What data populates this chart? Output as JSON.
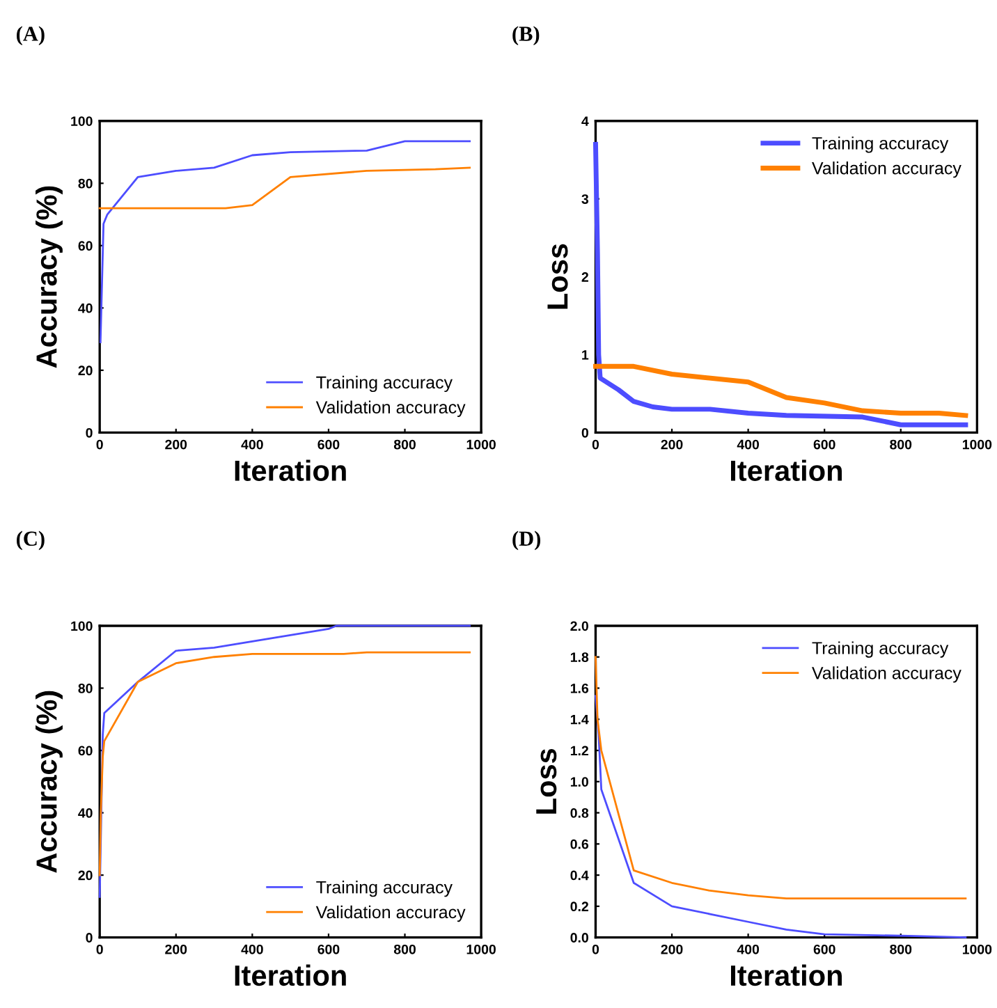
{
  "chart_data": [
    {
      "type": "line",
      "title": "(A)",
      "xlabel": "Iteration",
      "ylabel": "Accuracy (%)",
      "xlim": [
        0,
        1000
      ],
      "xticks": [
        0,
        200,
        400,
        600,
        800,
        1000
      ],
      "ylim": [
        0,
        100
      ],
      "yticks": [
        0,
        20,
        40,
        60,
        80,
        100
      ],
      "grid": false,
      "legend": "bottom right",
      "line_style": "solid",
      "series": [
        {
          "name": "Training accuracy",
          "color": "#4d4dff",
          "x": [
            2,
            10,
            20,
            100,
            200,
            300,
            400,
            500,
            700,
            800,
            970
          ],
          "values": [
            29,
            67,
            70,
            82,
            84,
            85,
            89,
            90,
            90.5,
            93.5,
            93.5
          ]
        },
        {
          "name": "Validation accuracy",
          "color": "#ff8000",
          "x": [
            0,
            330,
            400,
            500,
            700,
            880,
            970
          ],
          "values": [
            72,
            72,
            73,
            82,
            84,
            84.5,
            85
          ]
        }
      ]
    },
    {
      "type": "line",
      "title": "(B)",
      "xlabel": "Iteration",
      "ylabel": "Loss",
      "xlim": [
        0,
        1000
      ],
      "xticks": [
        0,
        200,
        400,
        600,
        800,
        1000
      ],
      "ylim": [
        0,
        4
      ],
      "yticks": [
        0,
        1,
        2,
        3,
        4
      ],
      "grid": false,
      "legend": "top right",
      "line_style": "solid",
      "series": [
        {
          "name": "Training accuracy",
          "color": "#4d4dff",
          "x": [
            0,
            5,
            8,
            12,
            60,
            100,
            150,
            200,
            300,
            400,
            500,
            700,
            800,
            970
          ],
          "values": [
            3.7,
            2.3,
            1.0,
            0.7,
            0.55,
            0.4,
            0.33,
            0.3,
            0.3,
            0.25,
            0.22,
            0.2,
            0.1,
            0.1
          ]
        },
        {
          "name": "Validation accuracy",
          "color": "#ff8000",
          "x": [
            0,
            100,
            200,
            400,
            500,
            600,
            700,
            800,
            900,
            970
          ],
          "values": [
            0.85,
            0.85,
            0.75,
            0.65,
            0.45,
            0.38,
            0.28,
            0.25,
            0.25,
            0.22
          ]
        }
      ]
    },
    {
      "type": "line",
      "title": "(C)",
      "xlabel": "Iteration",
      "ylabel": "Accuracy (%)",
      "xlim": [
        0,
        1000
      ],
      "xticks": [
        0,
        200,
        400,
        600,
        800,
        1000
      ],
      "ylim": [
        0,
        100
      ],
      "yticks": [
        0,
        20,
        40,
        60,
        80,
        100
      ],
      "grid": false,
      "legend": "bottom right",
      "line_style": "solid",
      "series": [
        {
          "name": "Training accuracy",
          "color": "#4d4dff",
          "x": [
            0,
            8,
            12,
            100,
            200,
            300,
            450,
            600,
            620,
            970
          ],
          "values": [
            13,
            65,
            72,
            82,
            92,
            93,
            96,
            99,
            100,
            100
          ]
        },
        {
          "name": "Validation accuracy",
          "color": "#ff8000",
          "x": [
            0,
            3,
            8,
            12,
            100,
            200,
            300,
            400,
            640,
            700,
            970
          ],
          "values": [
            20,
            40,
            58,
            63,
            82,
            88,
            90,
            91,
            91,
            91.5,
            91.5
          ]
        }
      ]
    },
    {
      "type": "line",
      "title": "(D)",
      "xlabel": "Iteration",
      "ylabel": "Loss",
      "xlim": [
        0,
        1000
      ],
      "xticks": [
        0,
        200,
        400,
        600,
        800,
        1000
      ],
      "ylim": [
        0,
        2
      ],
      "yticks": [
        {
          "value": 0,
          "label": "0.0"
        },
        0.2,
        0.4,
        0.6,
        0.8,
        {
          "value": 1,
          "label": "1.0"
        },
        1.2,
        1.4,
        1.6,
        1.8,
        {
          "value": 2,
          "label": "2.0"
        }
      ],
      "grid": false,
      "legend": "top right",
      "line_style": "solid",
      "series": [
        {
          "name": "Training accuracy",
          "color": "#4d4dff",
          "x": [
            0,
            8,
            15,
            100,
            200,
            300,
            400,
            500,
            600,
            820,
            970
          ],
          "values": [
            1.55,
            1.3,
            0.95,
            0.35,
            0.2,
            0.15,
            0.1,
            0.05,
            0.02,
            0.01,
            0.0
          ]
        },
        {
          "name": "Validation accuracy",
          "color": "#ff8000",
          "x": [
            0,
            5,
            15,
            100,
            200,
            300,
            400,
            500,
            970
          ],
          "values": [
            1.8,
            1.4,
            1.2,
            0.43,
            0.35,
            0.3,
            0.27,
            0.25,
            0.25
          ]
        }
      ]
    }
  ]
}
